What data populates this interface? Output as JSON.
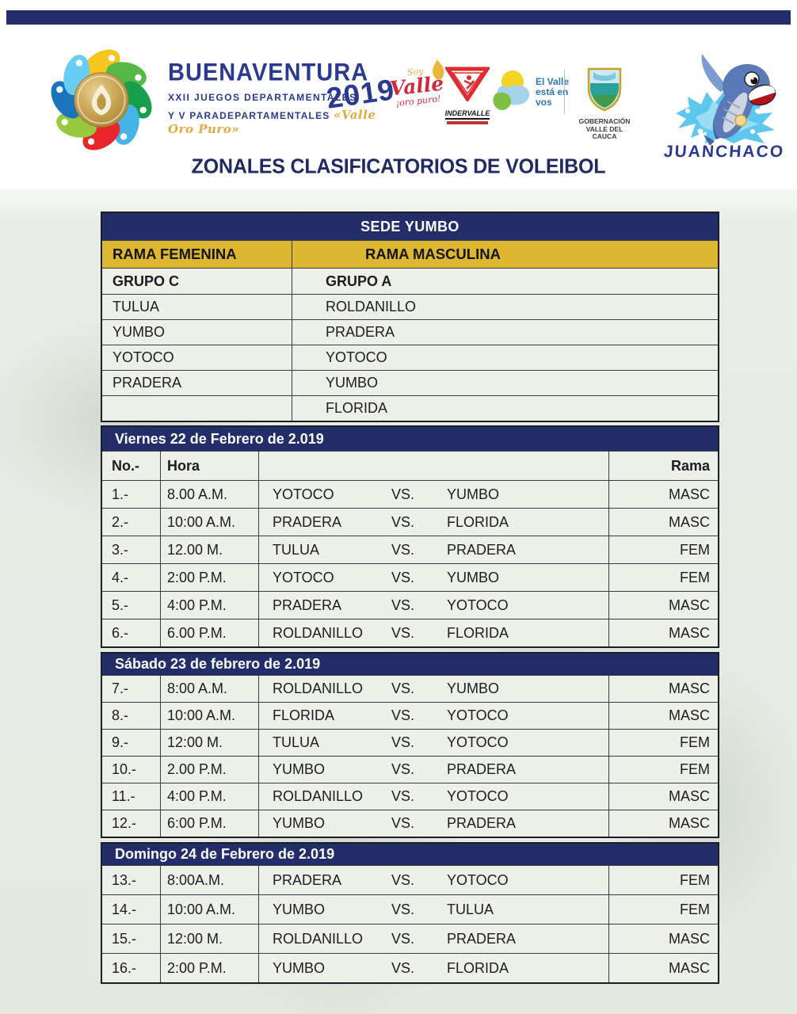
{
  "colors": {
    "navy": "#232d69",
    "gold": "#ddb72f",
    "red": "#e02a2f",
    "splash_blue": "#5ec7ef"
  },
  "header": {
    "brand": {
      "title": "BUENAVENTURA",
      "year": "2019",
      "line1": "XXII JUEGOS DEPARTAMENTALES",
      "line2": "Y V PARADEPARTAMENTALES",
      "motto": "«Valle Oro Puro»"
    },
    "soy_valle": {
      "line1": "Soy",
      "line2": "Valle",
      "line3": "¡oro puro!"
    },
    "indervalle": {
      "label": "INDERVALLE"
    },
    "el_valle": {
      "line1": "El Valle",
      "line2": "está en",
      "line3": "vos"
    },
    "gobernacion": {
      "line1": "GOBERNACIÓN",
      "line2": "VALLE DEL CAUCA"
    },
    "mascot_name": "JUANCHACO"
  },
  "title": "ZONALES CLASIFICATORIOS DE VOLEIBOL",
  "venue": {
    "name": "SEDE YUMBO",
    "left": {
      "rama": "RAMA FEMENINA",
      "grupo": "GRUPO C",
      "teams": [
        "TULUA",
        "YUMBO",
        "YOTOCO",
        "PRADERA",
        ""
      ]
    },
    "right": {
      "rama": "RAMA MASCULINA",
      "grupo": "GRUPO A",
      "teams": [
        "ROLDANILLO",
        "PRADERA",
        "YOTOCO",
        "YUMBO",
        "FLORIDA"
      ]
    }
  },
  "schedule": {
    "headers": {
      "no": "No.-",
      "hora": "Hora",
      "rama": "Rama",
      "vs": "VS."
    },
    "days": [
      {
        "date": "Viernes 22 de Febrero de 2.019",
        "show_header": true,
        "matches": [
          {
            "no": "1.-",
            "hora": "8.00 A.M.",
            "team1": "YOTOCO",
            "team2": "YUMBO",
            "rama": "MASC"
          },
          {
            "no": "2.-",
            "hora": "10:00 A.M.",
            "team1": "PRADERA",
            "team2": "FLORIDA",
            "rama": "MASC"
          },
          {
            "no": "3.-",
            "hora": "12.00 M.",
            "team1": "TULUA",
            "team2": "PRADERA",
            "rama": "FEM"
          },
          {
            "no": "4.-",
            "hora": "2:00 P.M.",
            "team1": "YOTOCO",
            "team2": "YUMBO",
            "rama": "FEM"
          },
          {
            "no": "5.-",
            "hora": "4:00 P.M.",
            "team1": "PRADERA",
            "team2": "YOTOCO",
            "rama": "MASC"
          },
          {
            "no": "6.-",
            "hora": "6.00 P.M.",
            "team1": "ROLDANILLO",
            "team2": "FLORIDA",
            "rama": "MASC"
          }
        ]
      },
      {
        "date": "Sábado 23 de febrero de 2.019",
        "show_header": false,
        "matches": [
          {
            "no": "7.-",
            "hora": "8:00 A.M.",
            "team1": "ROLDANILLO",
            "team2": "YUMBO",
            "rama": "MASC"
          },
          {
            "no": "8.-",
            "hora": "10:00 A.M.",
            "team1": "FLORIDA",
            "team2": "YOTOCO",
            "rama": "MASC"
          },
          {
            "no": "9.-",
            "hora": "12:00 M.",
            "team1": "TULUA",
            "team2": "YOTOCO",
            "rama": "FEM"
          },
          {
            "no": "10.-",
            "hora": "2.00 P.M.",
            "team1": "YUMBO",
            "team2": "PRADERA",
            "rama": "FEM"
          },
          {
            "no": "11.-",
            "hora": "4:00 P.M.",
            "team1": "ROLDANILLO",
            "team2": "YOTOCO",
            "rama": "MASC"
          },
          {
            "no": "12.-",
            "hora": "6:00 P.M.",
            "team1": "YUMBO",
            "team2": "PRADERA",
            "rama": "MASC"
          }
        ]
      },
      {
        "date": "Domingo 24 de Febrero de 2.019",
        "show_header": false,
        "matches": [
          {
            "no": "13.-",
            "hora": "8:00A.M.",
            "team1": "PRADERA",
            "team2": "YOTOCO",
            "rama": "FEM"
          },
          {
            "no": "14.-",
            "hora": "10:00 A.M.",
            "team1": "YUMBO",
            "team2": "TULUA",
            "rama": "FEM"
          },
          {
            "no": "15.-",
            "hora": "12:00 M.",
            "team1": "ROLDANILLO",
            "team2": "PRADERA",
            "rama": "MASC"
          },
          {
            "no": "16.-",
            "hora": "2:00 P.M.",
            "team1": "YUMBO",
            "team2": "FLORIDA",
            "rama": "MASC"
          }
        ]
      }
    ]
  }
}
